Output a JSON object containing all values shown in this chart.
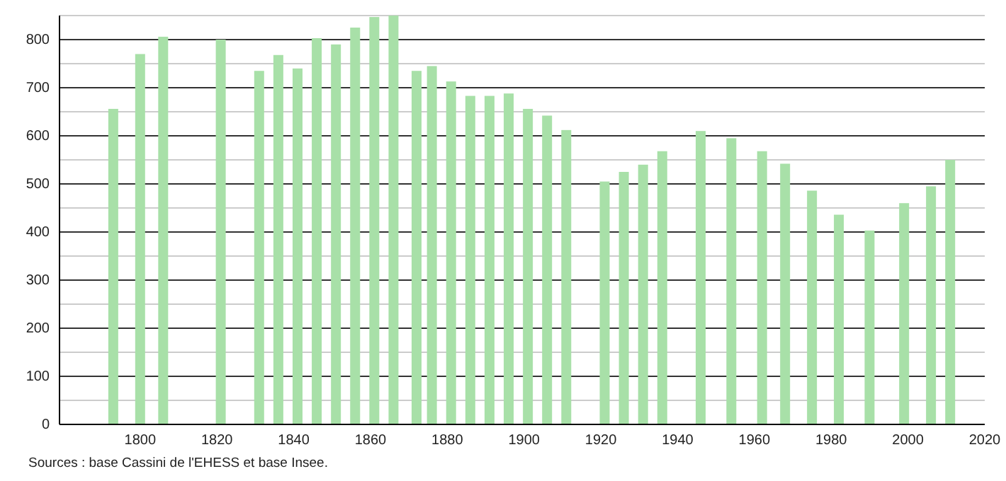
{
  "chart_data": {
    "type": "bar",
    "x": [
      1793,
      1800,
      1806,
      1821,
      1831,
      1836,
      1841,
      1846,
      1851,
      1856,
      1861,
      1866,
      1872,
      1876,
      1881,
      1886,
      1891,
      1896,
      1901,
      1906,
      1911,
      1921,
      1926,
      1931,
      1936,
      1946,
      1954,
      1962,
      1968,
      1975,
      1982,
      1990,
      1999,
      2006,
      2011
    ],
    "values": [
      656,
      770,
      806,
      800,
      735,
      768,
      740,
      803,
      790,
      825,
      847,
      850,
      735,
      745,
      713,
      683,
      683,
      688,
      656,
      642,
      612,
      505,
      525,
      540,
      568,
      610,
      595,
      568,
      542,
      486,
      436,
      403,
      460,
      495,
      550
    ],
    "color": "#a8e0a8",
    "xlim": [
      1779,
      2020
    ],
    "xticks": [
      1800,
      1820,
      1840,
      1860,
      1880,
      1900,
      1920,
      1940,
      1960,
      1980,
      2000,
      2020
    ],
    "ylim": [
      0,
      850
    ],
    "yticks": [
      0,
      {
        "value": 50,
        "label": null
      },
      100,
      {
        "value": 150,
        "label": null
      },
      200,
      {
        "value": 250,
        "label": null
      },
      300,
      {
        "value": 350,
        "label": null
      },
      400,
      {
        "value": 450,
        "label": null
      },
      500,
      {
        "value": 550,
        "label": null
      },
      600,
      {
        "value": 650,
        "label": null
      },
      700,
      {
        "value": 750,
        "label": null
      },
      800,
      {
        "value": 850,
        "label": null
      }
    ],
    "grid": true,
    "annotations": [
      "Sources : base Cassini de l'EHESS et base Insee."
    ]
  }
}
